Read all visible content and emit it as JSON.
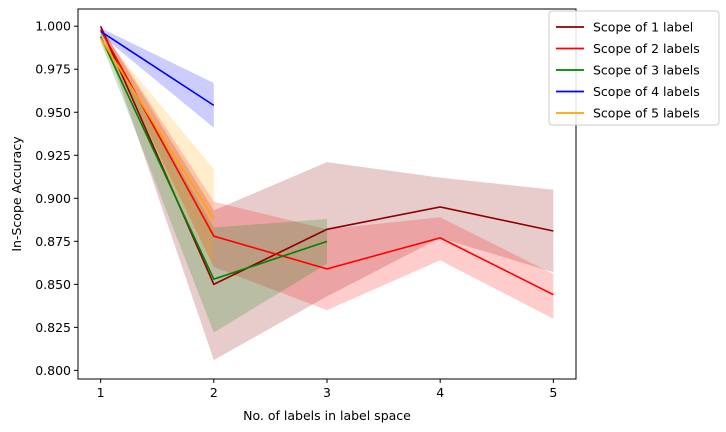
{
  "chart_data": {
    "type": "line",
    "title": "",
    "xlabel": "No. of labels in label space",
    "ylabel": "In-Scope Accuracy",
    "xlim": [
      0.8,
      5.2
    ],
    "ylim": [
      0.795,
      1.01
    ],
    "xticks": [
      1,
      2,
      3,
      4,
      5
    ],
    "yticks": [
      0.8,
      0.825,
      0.85,
      0.875,
      0.9,
      0.925,
      0.95,
      0.975,
      1.0
    ],
    "ytick_labels": [
      "0.800",
      "0.825",
      "0.850",
      "0.875",
      "0.900",
      "0.925",
      "0.950",
      "0.975",
      "1.000"
    ],
    "legend_position": "top-right (outside)",
    "series": [
      {
        "name": "Scope of 1 label",
        "color": "#8b0000",
        "x": [
          1,
          2,
          3,
          4,
          5
        ],
        "y": [
          1.0,
          0.85,
          0.882,
          0.895,
          0.881
        ],
        "lower": [
          0.999,
          0.806,
          0.843,
          0.877,
          0.857
        ],
        "upper": [
          1.0,
          0.893,
          0.921,
          0.912,
          0.905
        ]
      },
      {
        "name": "Scope of 2 labels",
        "color": "#ff0000",
        "x": [
          1,
          2,
          3,
          4,
          5
        ],
        "y": [
          0.998,
          0.878,
          0.859,
          0.877,
          0.844
        ],
        "lower": [
          0.996,
          0.86,
          0.835,
          0.864,
          0.83
        ],
        "upper": [
          1.0,
          0.898,
          0.882,
          0.889,
          0.856
        ]
      },
      {
        "name": "Scope of 3 labels",
        "color": "#008000",
        "x": [
          1,
          2,
          3
        ],
        "y": [
          0.994,
          0.853,
          0.875
        ],
        "lower": [
          0.991,
          0.822,
          0.862
        ],
        "upper": [
          0.997,
          0.883,
          0.888
        ]
      },
      {
        "name": "Scope of 4 labels",
        "color": "#0000ff",
        "x": [
          1,
          2
        ],
        "y": [
          0.997,
          0.954
        ],
        "lower": [
          0.995,
          0.941
        ],
        "upper": [
          0.999,
          0.967
        ]
      },
      {
        "name": "Scope of 5 labels",
        "color": "#ffa500",
        "x": [
          1,
          2
        ],
        "y": [
          0.993,
          0.888
        ],
        "lower": [
          0.99,
          0.86
        ],
        "upper": [
          0.996,
          0.917
        ]
      }
    ]
  }
}
